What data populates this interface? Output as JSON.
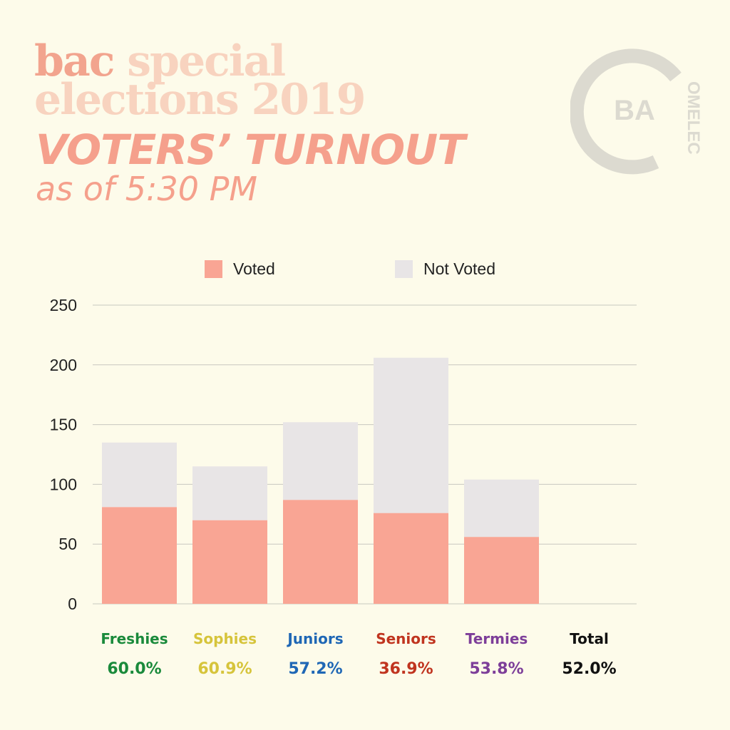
{
  "header": {
    "bac": "bac",
    "special": "special",
    "elections": "elections 2019",
    "subtitle": "VOTERS’ TURNOUT",
    "as_of": "as of 5:30 PM"
  },
  "logo": {
    "initials": "BA",
    "arc_text": "OMELEC",
    "icon": "comelec-logo"
  },
  "colors": {
    "voted": "#f9a594",
    "not_voted": "#e8e5e6",
    "background": "#fdfbea",
    "grid": "#c8c8c0"
  },
  "chart_data": {
    "type": "bar",
    "stacked": true,
    "categories": [
      "Freshies",
      "Sophies",
      "Juniors",
      "Seniors",
      "Termies",
      "Total"
    ],
    "series": [
      {
        "name": "Voted",
        "values": [
          81,
          70,
          87,
          76,
          56,
          null
        ]
      },
      {
        "name": "Not Voted",
        "values": [
          54,
          45,
          65,
          130,
          48,
          null
        ]
      }
    ],
    "ylim": [
      0,
      250
    ],
    "yticks": [
      "0",
      "50",
      "100",
      "150",
      "200",
      "250"
    ],
    "grid": true,
    "legend": "top",
    "turnout_labels": [
      "60.0%",
      "60.9%",
      "57.2%",
      "36.9%",
      "53.8%",
      "52.0%"
    ],
    "label_colors": [
      "#1a8a3b",
      "#d6c43b",
      "#1f67b5",
      "#c0341f",
      "#7d3e99",
      "#111111"
    ]
  }
}
